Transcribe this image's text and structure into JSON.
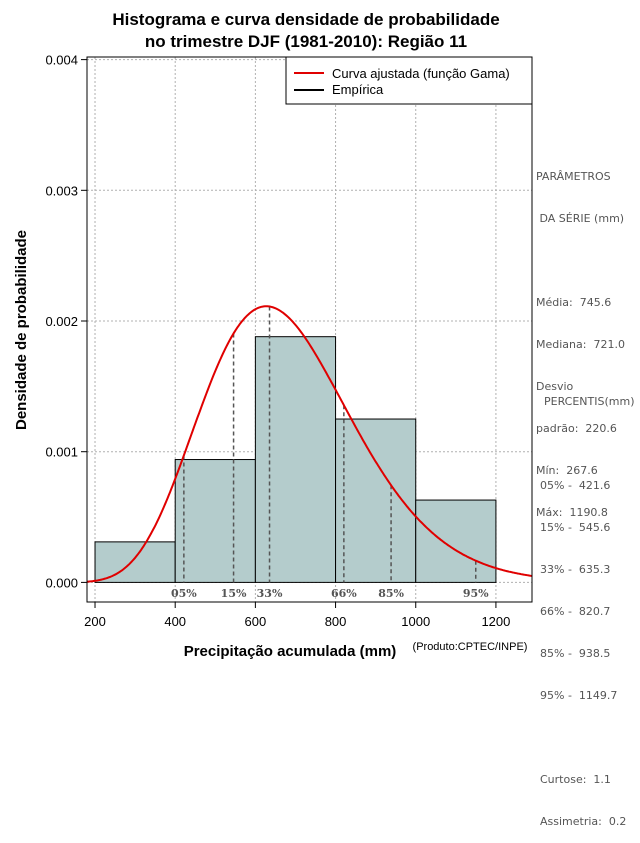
{
  "chart_data": {
    "type": "bar",
    "title_line1": "Histograma e curva densidade de probabilidade",
    "title_line2": "no trimestre DJF (1981-2010): Região 11",
    "xlabel": "Precipitação acumulada (mm)",
    "ylabel": "Densidade de probabilidade",
    "xlim": [
      180,
      1290
    ],
    "ylim": [
      -0.00015,
      0.00402
    ],
    "grid": true,
    "x_ticks": [
      200,
      400,
      600,
      800,
      1000,
      1200
    ],
    "x_tick_labels": [
      "200",
      "400",
      "600",
      "800",
      "1000",
      "1200"
    ],
    "y_ticks": [
      0.0,
      0.001,
      0.002,
      0.003,
      0.004
    ],
    "y_tick_labels": [
      "0.000",
      "0.001",
      "0.002",
      "0.003",
      "0.004"
    ],
    "bins": [
      {
        "start": 200,
        "end": 400,
        "density": 0.00031
      },
      {
        "start": 400,
        "end": 600,
        "density": 0.00094
      },
      {
        "start": 600,
        "end": 800,
        "density": 0.00188
      },
      {
        "start": 800,
        "end": 1000,
        "density": 0.00125
      },
      {
        "start": 1000,
        "end": 1200,
        "density": 0.00063
      }
    ],
    "gamma_fit": {
      "shape": 12.2,
      "scale": 56.0
    },
    "percentiles": [
      {
        "label": "05%",
        "value": 421.6
      },
      {
        "label": "15%",
        "value": 545.6
      },
      {
        "label": "33%",
        "value": 635.3
      },
      {
        "label": "66%",
        "value": 820.7
      },
      {
        "label": "85%",
        "value": 938.5
      },
      {
        "label": "95%",
        "value": 1149.7
      }
    ],
    "legend": {
      "position": "top-right",
      "entries": [
        {
          "name": "Curva ajustada (função Gama)",
          "color": "#e00000"
        },
        {
          "name": "Empírica",
          "color": "#000000"
        }
      ]
    },
    "colors": {
      "bar_fill": "#b4cccc",
      "bar_stroke": "#000000",
      "curve": "#e00000",
      "grid": "#b0b0b0",
      "percentile_line": "#555555"
    }
  },
  "credit": "(Produto:CPTEC/INPE)",
  "stats_panel": {
    "heading_line1": "PARÂMETROS",
    "heading_line2": " DA SÉRIE (mm)",
    "media": "Média:  745.6",
    "mediana": "Mediana:  721.0",
    "desvio_line1": "Desvio",
    "desvio_line2": "padrão:  220.6",
    "min": "Mín:  267.6",
    "max": "Máx:  1190.8"
  },
  "percentiles_panel": {
    "heading": "PERCENTIS(mm)",
    "rows": [
      "05% -  421.6",
      "15% -  545.6",
      "33% -  635.3",
      "66% -  820.7",
      "85% -  938.5",
      "95% -  1149.7"
    ],
    "curtose": "Curtose:  1.1",
    "assimetria": "Assimetria:  0.2"
  }
}
